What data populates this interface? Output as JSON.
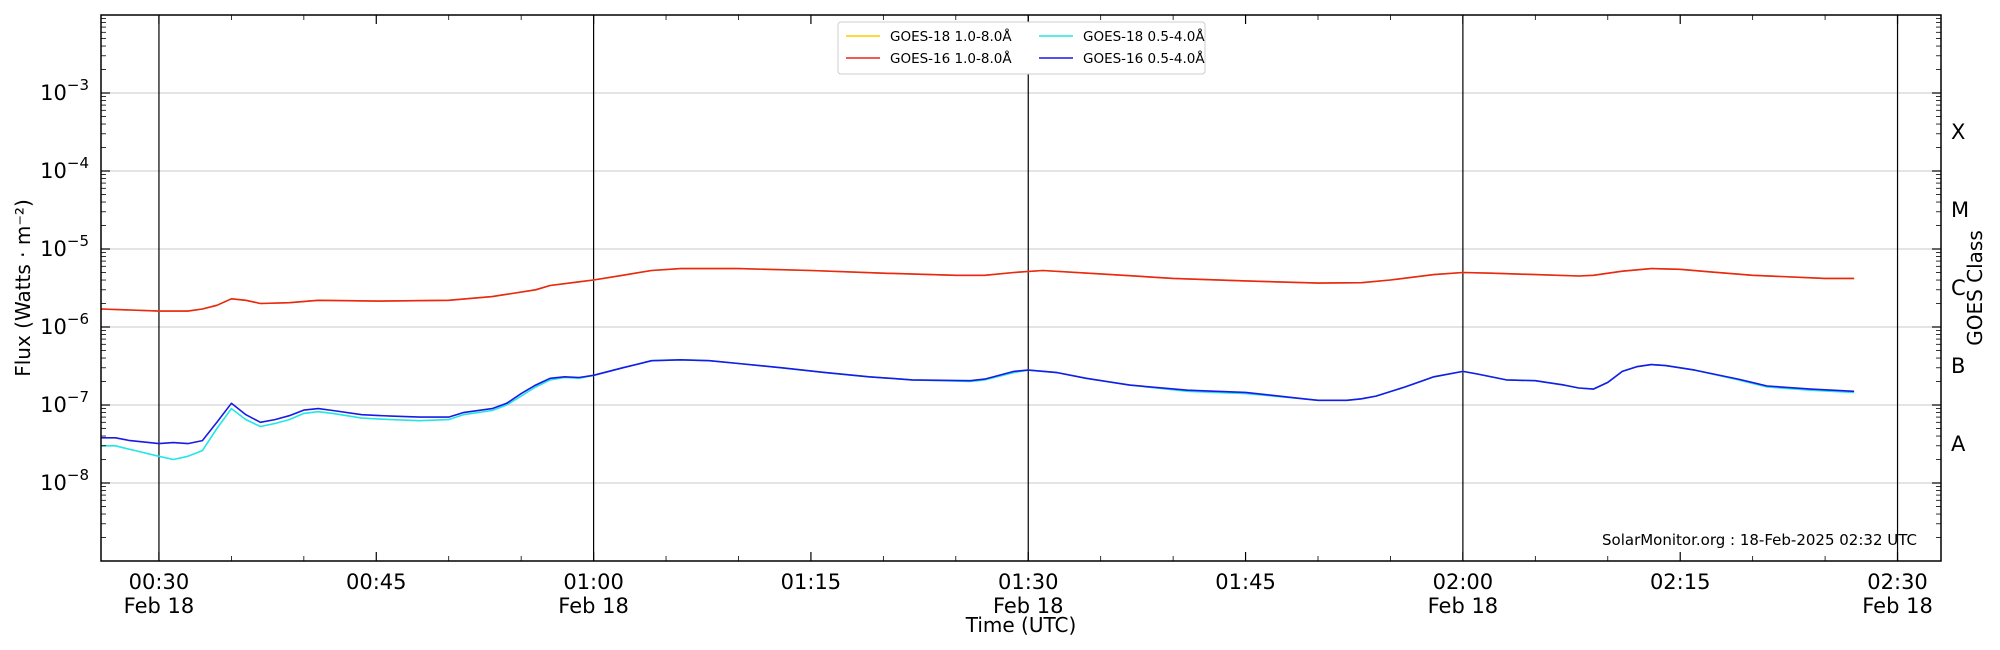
{
  "chart_data": {
    "type": "line",
    "y_scale": "log",
    "ylabel": "Flux (Watts · m⁻²)",
    "xlabel": "Time (UTC)",
    "right_ylabel": "GOES Class",
    "xlim": [
      "00:26",
      "02:33"
    ],
    "ylim": [
      1e-09,
      0.01
    ],
    "y_ticks": [
      {
        "value": 1e-08,
        "base": "10",
        "exp": "−8"
      },
      {
        "value": 1e-07,
        "base": "10",
        "exp": "−7"
      },
      {
        "value": 1e-06,
        "base": "10",
        "exp": "−6"
      },
      {
        "value": 1e-05,
        "base": "10",
        "exp": "−5"
      },
      {
        "value": 0.0001,
        "base": "10",
        "exp": "−4"
      },
      {
        "value": 0.001,
        "base": "10",
        "exp": "−3"
      }
    ],
    "x_ticks": [
      {
        "time": "00:30",
        "label": "00:30",
        "sub": "Feb 18"
      },
      {
        "time": "00:45",
        "label": "00:45",
        "sub": ""
      },
      {
        "time": "01:00",
        "label": "01:00",
        "sub": "Feb 18"
      },
      {
        "time": "01:15",
        "label": "01:15",
        "sub": ""
      },
      {
        "time": "01:30",
        "label": "01:30",
        "sub": "Feb 18"
      },
      {
        "time": "01:45",
        "label": "01:45",
        "sub": ""
      },
      {
        "time": "02:00",
        "label": "02:00",
        "sub": "Feb 18"
      },
      {
        "time": "02:15",
        "label": "02:15",
        "sub": ""
      },
      {
        "time": "02:30",
        "label": "02:30",
        "sub": "Feb 18"
      }
    ],
    "vertical_lines": [
      "00:30",
      "01:00",
      "01:30",
      "02:00",
      "02:30"
    ],
    "goes_classes": [
      {
        "label": "A",
        "flux": 3.16e-08
      },
      {
        "label": "B",
        "flux": 3.16e-07
      },
      {
        "label": "C",
        "flux": 3.16e-06
      },
      {
        "label": "M",
        "flux": 3.16e-05
      },
      {
        "label": "X",
        "flux": 0.000316
      }
    ],
    "grid": "horizontal at each decade",
    "legend_position": "top-center",
    "annotation": "SolarMonitor.org : 18-Feb-2025 02:32 UTC",
    "series": [
      {
        "name": "GOES-18 1.0-8.0Å",
        "color": "#ffcc00",
        "x": [
          "00:26",
          "00:28",
          "00:30",
          "00:32",
          "00:33",
          "00:34",
          "00:35",
          "00:36",
          "00:37",
          "00:39",
          "00:41",
          "00:45",
          "00:50",
          "00:53",
          "00:56",
          "00:57",
          "00:59",
          "01:00",
          "01:02",
          "01:04",
          "01:06",
          "01:10",
          "01:15",
          "01:20",
          "01:25",
          "01:27",
          "01:29",
          "01:31",
          "01:35",
          "01:40",
          "01:45",
          "01:50",
          "01:53",
          "01:55",
          "01:58",
          "02:00",
          "02:02",
          "02:05",
          "02:08",
          "02:09",
          "02:11",
          "02:13",
          "02:15",
          "02:17",
          "02:20",
          "02:25",
          "02:27"
        ],
        "y": [
          1.7e-06,
          1.65e-06,
          1.6e-06,
          1.6e-06,
          1.7e-06,
          1.9e-06,
          2.3e-06,
          2.2e-06,
          2e-06,
          2.05e-06,
          2.2e-06,
          2.15e-06,
          2.2e-06,
          2.45e-06,
          3e-06,
          3.4e-06,
          3.8e-06,
          4e-06,
          4.6e-06,
          5.3e-06,
          5.6e-06,
          5.6e-06,
          5.3e-06,
          4.9e-06,
          4.6e-06,
          4.6e-06,
          5e-06,
          5.3e-06,
          4.8e-06,
          4.2e-06,
          3.9e-06,
          3.65e-06,
          3.7e-06,
          4e-06,
          4.7e-06,
          5e-06,
          4.9e-06,
          4.7e-06,
          4.5e-06,
          4.6e-06,
          5.2e-06,
          5.6e-06,
          5.5e-06,
          5.1e-06,
          4.6e-06,
          4.2e-06,
          4.2e-06
        ]
      },
      {
        "name": "GOES-16 1.0-8.0Å",
        "color": "#e8261b",
        "x": [
          "00:26",
          "00:28",
          "00:30",
          "00:32",
          "00:33",
          "00:34",
          "00:35",
          "00:36",
          "00:37",
          "00:39",
          "00:41",
          "00:45",
          "00:50",
          "00:53",
          "00:56",
          "00:57",
          "00:59",
          "01:00",
          "01:02",
          "01:04",
          "01:06",
          "01:10",
          "01:15",
          "01:20",
          "01:25",
          "01:27",
          "01:29",
          "01:31",
          "01:35",
          "01:40",
          "01:45",
          "01:50",
          "01:53",
          "01:55",
          "01:58",
          "02:00",
          "02:02",
          "02:05",
          "02:08",
          "02:09",
          "02:11",
          "02:13",
          "02:15",
          "02:17",
          "02:20",
          "02:25",
          "02:27"
        ],
        "y": [
          1.7e-06,
          1.65e-06,
          1.6e-06,
          1.6e-06,
          1.7e-06,
          1.9e-06,
          2.3e-06,
          2.2e-06,
          2e-06,
          2.05e-06,
          2.2e-06,
          2.15e-06,
          2.2e-06,
          2.45e-06,
          3e-06,
          3.4e-06,
          3.8e-06,
          4e-06,
          4.6e-06,
          5.3e-06,
          5.6e-06,
          5.6e-06,
          5.3e-06,
          4.9e-06,
          4.6e-06,
          4.6e-06,
          5e-06,
          5.3e-06,
          4.8e-06,
          4.2e-06,
          3.9e-06,
          3.65e-06,
          3.7e-06,
          4e-06,
          4.7e-06,
          5e-06,
          4.9e-06,
          4.7e-06,
          4.5e-06,
          4.6e-06,
          5.2e-06,
          5.6e-06,
          5.5e-06,
          5.1e-06,
          4.6e-06,
          4.2e-06,
          4.2e-06
        ]
      },
      {
        "name": "GOES-18 0.5-4.0Å",
        "color": "#22e6e6",
        "x": [
          "00:26",
          "00:27",
          "00:28",
          "00:30",
          "00:31",
          "00:32",
          "00:33",
          "00:34",
          "00:35",
          "00:36",
          "00:37",
          "00:38",
          "00:39",
          "00:40",
          "00:41",
          "00:42",
          "00:44",
          "00:46",
          "00:48",
          "00:50",
          "00:51",
          "00:53",
          "00:54",
          "00:55",
          "00:56",
          "00:57",
          "00:58",
          "00:59",
          "01:00",
          "01:02",
          "01:04",
          "01:06",
          "01:08",
          "01:10",
          "01:13",
          "01:16",
          "01:19",
          "01:22",
          "01:26",
          "01:27",
          "01:29",
          "01:30",
          "01:32",
          "01:34",
          "01:37",
          "01:41",
          "01:45",
          "01:49",
          "01:50",
          "01:52",
          "01:53",
          "01:54",
          "01:56",
          "01:58",
          "02:00",
          "02:01",
          "02:03",
          "02:05",
          "02:07",
          "02:08",
          "02:09",
          "02:10",
          "02:11",
          "02:12",
          "02:13",
          "02:14",
          "02:16",
          "02:19",
          "02:21",
          "02:24",
          "02:27"
        ],
        "y": [
          3e-08,
          3e-08,
          2.7e-08,
          2.2e-08,
          2e-08,
          2.2e-08,
          2.6e-08,
          5e-08,
          9e-08,
          6.5e-08,
          5.3e-08,
          5.8e-08,
          6.5e-08,
          7.8e-08,
          8.2e-08,
          7.8e-08,
          6.8e-08,
          6.5e-08,
          6.3e-08,
          6.5e-08,
          7.5e-08,
          8.5e-08,
          1e-07,
          1.3e-07,
          1.7e-07,
          2.1e-07,
          2.25e-07,
          2.2e-07,
          2.4e-07,
          3e-07,
          3.7e-07,
          3.8e-07,
          3.7e-07,
          3.4e-07,
          3e-07,
          2.6e-07,
          2.3e-07,
          2.1e-07,
          2e-07,
          2.1e-07,
          2.6e-07,
          2.8e-07,
          2.6e-07,
          2.2e-07,
          1.8e-07,
          1.5e-07,
          1.4e-07,
          1.2e-07,
          1.15e-07,
          1.15e-07,
          1.2e-07,
          1.3e-07,
          1.7e-07,
          2.3e-07,
          2.7e-07,
          2.5e-07,
          2.1e-07,
          2.05e-07,
          1.8e-07,
          1.65e-07,
          1.6e-07,
          1.95e-07,
          2.7e-07,
          3.1e-07,
          3.3e-07,
          3.2e-07,
          2.8e-07,
          2.1e-07,
          1.7e-07,
          1.55e-07,
          1.45e-07
        ]
      },
      {
        "name": "GOES-16 0.5-4.0Å",
        "color": "#1a1ae6",
        "x": [
          "00:26",
          "00:27",
          "00:28",
          "00:30",
          "00:31",
          "00:32",
          "00:33",
          "00:34",
          "00:35",
          "00:36",
          "00:37",
          "00:38",
          "00:39",
          "00:40",
          "00:41",
          "00:42",
          "00:44",
          "00:46",
          "00:48",
          "00:50",
          "00:51",
          "00:53",
          "00:54",
          "00:55",
          "00:56",
          "00:57",
          "00:58",
          "00:59",
          "01:00",
          "01:02",
          "01:04",
          "01:06",
          "01:08",
          "01:10",
          "01:13",
          "01:16",
          "01:19",
          "01:22",
          "01:26",
          "01:27",
          "01:29",
          "01:30",
          "01:32",
          "01:34",
          "01:37",
          "01:41",
          "01:45",
          "01:49",
          "01:50",
          "01:52",
          "01:53",
          "01:54",
          "01:56",
          "01:58",
          "02:00",
          "02:01",
          "02:03",
          "02:05",
          "02:07",
          "02:08",
          "02:09",
          "02:10",
          "02:11",
          "02:12",
          "02:13",
          "02:14",
          "02:16",
          "02:19",
          "02:21",
          "02:24",
          "02:27"
        ],
        "y": [
          3.8e-08,
          3.8e-08,
          3.5e-08,
          3.2e-08,
          3.3e-08,
          3.2e-08,
          3.5e-08,
          6e-08,
          1.05e-07,
          7.5e-08,
          6e-08,
          6.5e-08,
          7.3e-08,
          8.6e-08,
          9e-08,
          8.5e-08,
          7.5e-08,
          7.2e-08,
          7e-08,
          7e-08,
          8e-08,
          9e-08,
          1.05e-07,
          1.4e-07,
          1.8e-07,
          2.2e-07,
          2.3e-07,
          2.25e-07,
          2.4e-07,
          3e-07,
          3.7e-07,
          3.8e-07,
          3.7e-07,
          3.4e-07,
          3e-07,
          2.6e-07,
          2.3e-07,
          2.1e-07,
          2.05e-07,
          2.15e-07,
          2.7e-07,
          2.8e-07,
          2.6e-07,
          2.2e-07,
          1.8e-07,
          1.55e-07,
          1.45e-07,
          1.2e-07,
          1.15e-07,
          1.15e-07,
          1.2e-07,
          1.3e-07,
          1.7e-07,
          2.3e-07,
          2.7e-07,
          2.5e-07,
          2.1e-07,
          2.05e-07,
          1.8e-07,
          1.65e-07,
          1.6e-07,
          1.95e-07,
          2.7e-07,
          3.1e-07,
          3.3e-07,
          3.2e-07,
          2.8e-07,
          2.15e-07,
          1.75e-07,
          1.6e-07,
          1.5e-07
        ]
      }
    ]
  }
}
